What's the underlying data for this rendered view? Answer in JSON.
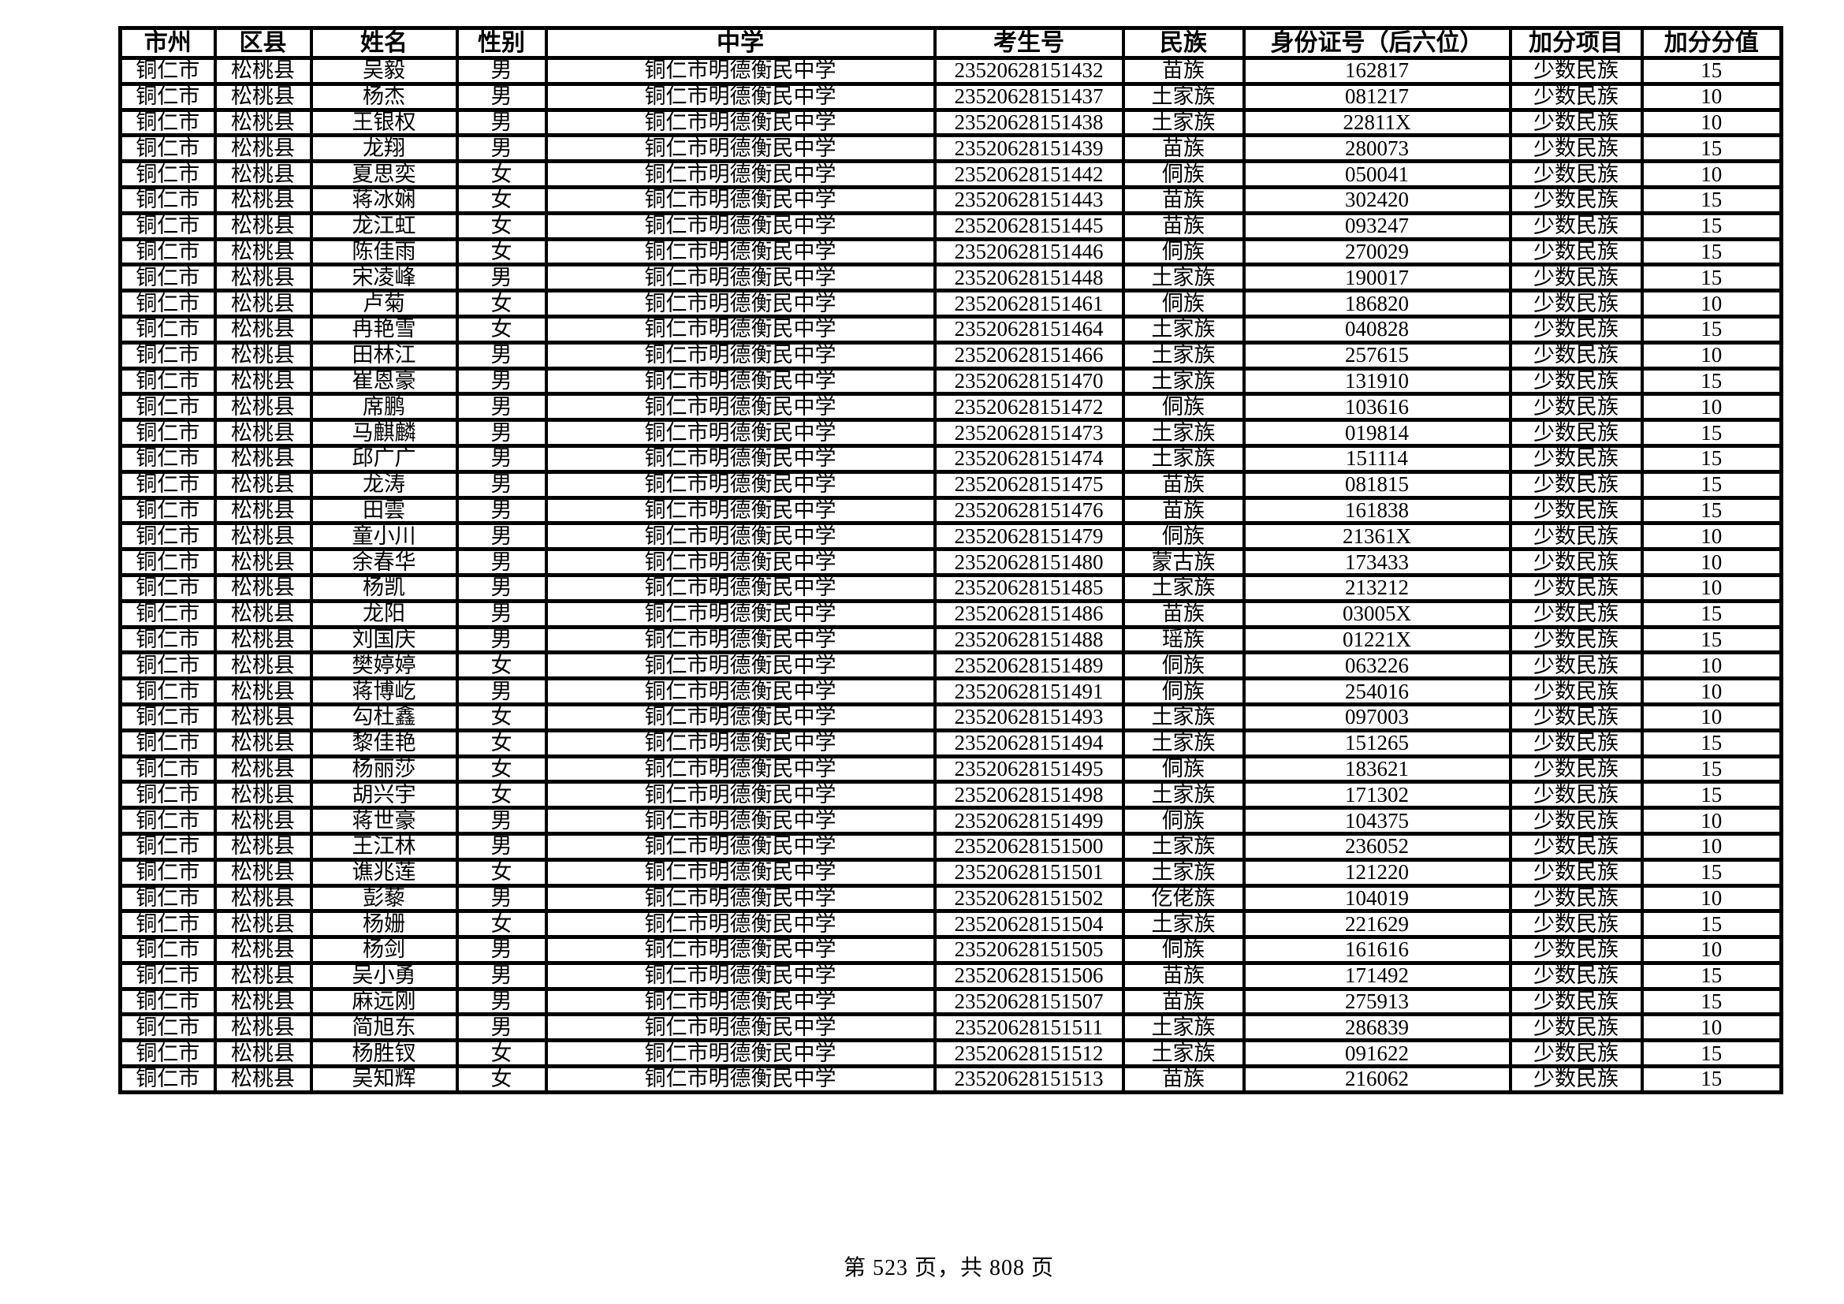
{
  "page": {
    "footer": "第 523 页，共 808 页"
  },
  "table": {
    "headers": [
      "市州",
      "区县",
      "姓名",
      "性别",
      "中学",
      "考生号",
      "民族",
      "身份证号（后六位）",
      "加分项目",
      "加分分值"
    ],
    "rows": [
      [
        "铜仁市",
        "松桃县",
        "吴毅",
        "男",
        "铜仁市明德衡民中学",
        "23520628151432",
        "苗族",
        "162817",
        "少数民族",
        "15"
      ],
      [
        "铜仁市",
        "松桃县",
        "杨杰",
        "男",
        "铜仁市明德衡民中学",
        "23520628151437",
        "土家族",
        "081217",
        "少数民族",
        "10"
      ],
      [
        "铜仁市",
        "松桃县",
        "王银权",
        "男",
        "铜仁市明德衡民中学",
        "23520628151438",
        "土家族",
        "22811X",
        "少数民族",
        "10"
      ],
      [
        "铜仁市",
        "松桃县",
        "龙翔",
        "男",
        "铜仁市明德衡民中学",
        "23520628151439",
        "苗族",
        "280073",
        "少数民族",
        "15"
      ],
      [
        "铜仁市",
        "松桃县",
        "夏思奕",
        "女",
        "铜仁市明德衡民中学",
        "23520628151442",
        "侗族",
        "050041",
        "少数民族",
        "10"
      ],
      [
        "铜仁市",
        "松桃县",
        "蒋冰娴",
        "女",
        "铜仁市明德衡民中学",
        "23520628151443",
        "苗族",
        "302420",
        "少数民族",
        "15"
      ],
      [
        "铜仁市",
        "松桃县",
        "龙江虹",
        "女",
        "铜仁市明德衡民中学",
        "23520628151445",
        "苗族",
        "093247",
        "少数民族",
        "15"
      ],
      [
        "铜仁市",
        "松桃县",
        "陈佳雨",
        "女",
        "铜仁市明德衡民中学",
        "23520628151446",
        "侗族",
        "270029",
        "少数民族",
        "15"
      ],
      [
        "铜仁市",
        "松桃县",
        "宋凌峰",
        "男",
        "铜仁市明德衡民中学",
        "23520628151448",
        "土家族",
        "190017",
        "少数民族",
        "15"
      ],
      [
        "铜仁市",
        "松桃县",
        "卢菊",
        "女",
        "铜仁市明德衡民中学",
        "23520628151461",
        "侗族",
        "186820",
        "少数民族",
        "10"
      ],
      [
        "铜仁市",
        "松桃县",
        "冉艳雪",
        "女",
        "铜仁市明德衡民中学",
        "23520628151464",
        "土家族",
        "040828",
        "少数民族",
        "15"
      ],
      [
        "铜仁市",
        "松桃县",
        "田林江",
        "男",
        "铜仁市明德衡民中学",
        "23520628151466",
        "土家族",
        "257615",
        "少数民族",
        "10"
      ],
      [
        "铜仁市",
        "松桃县",
        "崔恩豪",
        "男",
        "铜仁市明德衡民中学",
        "23520628151470",
        "土家族",
        "131910",
        "少数民族",
        "15"
      ],
      [
        "铜仁市",
        "松桃县",
        "席鹏",
        "男",
        "铜仁市明德衡民中学",
        "23520628151472",
        "侗族",
        "103616",
        "少数民族",
        "10"
      ],
      [
        "铜仁市",
        "松桃县",
        "马麒麟",
        "男",
        "铜仁市明德衡民中学",
        "23520628151473",
        "土家族",
        "019814",
        "少数民族",
        "15"
      ],
      [
        "铜仁市",
        "松桃县",
        "邱广广",
        "男",
        "铜仁市明德衡民中学",
        "23520628151474",
        "土家族",
        "151114",
        "少数民族",
        "15"
      ],
      [
        "铜仁市",
        "松桃县",
        "龙涛",
        "男",
        "铜仁市明德衡民中学",
        "23520628151475",
        "苗族",
        "081815",
        "少数民族",
        "15"
      ],
      [
        "铜仁市",
        "松桃县",
        "田雲",
        "男",
        "铜仁市明德衡民中学",
        "23520628151476",
        "苗族",
        "161838",
        "少数民族",
        "15"
      ],
      [
        "铜仁市",
        "松桃县",
        "童小川",
        "男",
        "铜仁市明德衡民中学",
        "23520628151479",
        "侗族",
        "21361X",
        "少数民族",
        "10"
      ],
      [
        "铜仁市",
        "松桃县",
        "余春华",
        "男",
        "铜仁市明德衡民中学",
        "23520628151480",
        "蒙古族",
        "173433",
        "少数民族",
        "10"
      ],
      [
        "铜仁市",
        "松桃县",
        "杨凯",
        "男",
        "铜仁市明德衡民中学",
        "23520628151485",
        "土家族",
        "213212",
        "少数民族",
        "10"
      ],
      [
        "铜仁市",
        "松桃县",
        "龙阳",
        "男",
        "铜仁市明德衡民中学",
        "23520628151486",
        "苗族",
        "03005X",
        "少数民族",
        "15"
      ],
      [
        "铜仁市",
        "松桃县",
        "刘国庆",
        "男",
        "铜仁市明德衡民中学",
        "23520628151488",
        "瑶族",
        "01221X",
        "少数民族",
        "15"
      ],
      [
        "铜仁市",
        "松桃县",
        "樊婷婷",
        "女",
        "铜仁市明德衡民中学",
        "23520628151489",
        "侗族",
        "063226",
        "少数民族",
        "10"
      ],
      [
        "铜仁市",
        "松桃县",
        "蒋博屹",
        "男",
        "铜仁市明德衡民中学",
        "23520628151491",
        "侗族",
        "254016",
        "少数民族",
        "10"
      ],
      [
        "铜仁市",
        "松桃县",
        "勾杜鑫",
        "女",
        "铜仁市明德衡民中学",
        "23520628151493",
        "土家族",
        "097003",
        "少数民族",
        "10"
      ],
      [
        "铜仁市",
        "松桃县",
        "黎佳艳",
        "女",
        "铜仁市明德衡民中学",
        "23520628151494",
        "土家族",
        "151265",
        "少数民族",
        "15"
      ],
      [
        "铜仁市",
        "松桃县",
        "杨丽莎",
        "女",
        "铜仁市明德衡民中学",
        "23520628151495",
        "侗族",
        "183621",
        "少数民族",
        "15"
      ],
      [
        "铜仁市",
        "松桃县",
        "胡兴宇",
        "女",
        "铜仁市明德衡民中学",
        "23520628151498",
        "土家族",
        "171302",
        "少数民族",
        "15"
      ],
      [
        "铜仁市",
        "松桃县",
        "蒋世豪",
        "男",
        "铜仁市明德衡民中学",
        "23520628151499",
        "侗族",
        "104375",
        "少数民族",
        "10"
      ],
      [
        "铜仁市",
        "松桃县",
        "王江林",
        "男",
        "铜仁市明德衡民中学",
        "23520628151500",
        "土家族",
        "236052",
        "少数民族",
        "10"
      ],
      [
        "铜仁市",
        "松桃县",
        "谯兆莲",
        "女",
        "铜仁市明德衡民中学",
        "23520628151501",
        "土家族",
        "121220",
        "少数民族",
        "15"
      ],
      [
        "铜仁市",
        "松桃县",
        "彭藜",
        "男",
        "铜仁市明德衡民中学",
        "23520628151502",
        "仡佬族",
        "104019",
        "少数民族",
        "10"
      ],
      [
        "铜仁市",
        "松桃县",
        "杨姗",
        "女",
        "铜仁市明德衡民中学",
        "23520628151504",
        "土家族",
        "221629",
        "少数民族",
        "15"
      ],
      [
        "铜仁市",
        "松桃县",
        "杨剑",
        "男",
        "铜仁市明德衡民中学",
        "23520628151505",
        "侗族",
        "161616",
        "少数民族",
        "10"
      ],
      [
        "铜仁市",
        "松桃县",
        "吴小勇",
        "男",
        "铜仁市明德衡民中学",
        "23520628151506",
        "苗族",
        "171492",
        "少数民族",
        "15"
      ],
      [
        "铜仁市",
        "松桃县",
        "麻远刚",
        "男",
        "铜仁市明德衡民中学",
        "23520628151507",
        "苗族",
        "275913",
        "少数民族",
        "15"
      ],
      [
        "铜仁市",
        "松桃县",
        "简旭东",
        "男",
        "铜仁市明德衡民中学",
        "23520628151511",
        "土家族",
        "286839",
        "少数民族",
        "10"
      ],
      [
        "铜仁市",
        "松桃县",
        "杨胜钗",
        "女",
        "铜仁市明德衡民中学",
        "23520628151512",
        "土家族",
        "091622",
        "少数民族",
        "15"
      ],
      [
        "铜仁市",
        "松桃县",
        "吴知辉",
        "女",
        "铜仁市明德衡民中学",
        "23520628151513",
        "苗族",
        "216062",
        "少数民族",
        "15"
      ]
    ]
  }
}
